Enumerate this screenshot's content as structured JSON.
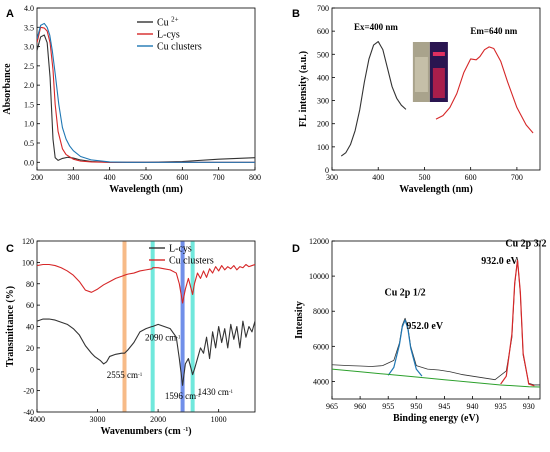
{
  "chart_data": [
    {
      "panel": "A",
      "type": "line",
      "title": "",
      "xlabel": "Wavelength (nm)",
      "ylabel": "Absorbance",
      "xlim": [
        200,
        800
      ],
      "ylim": [
        -0.2,
        4.0
      ],
      "xticks": [
        200,
        300,
        400,
        500,
        600,
        700,
        800
      ],
      "yticks": [
        0.0,
        0.5,
        1.0,
        1.5,
        2.0,
        2.5,
        3.0,
        3.5,
        4.0
      ],
      "legend": "top-right",
      "series": [
        {
          "name": "Cu 2+",
          "color": "#333333",
          "x": [
            200,
            210,
            220,
            228,
            236,
            244,
            250,
            258,
            270,
            285,
            300,
            320,
            350,
            400,
            500,
            600,
            700,
            800
          ],
          "y": [
            2.9,
            3.25,
            3.3,
            3.1,
            2.2,
            0.6,
            0.12,
            0.05,
            0.1,
            0.13,
            0.11,
            0.06,
            0.02,
            0.0,
            0.0,
            0.02,
            0.08,
            0.12
          ]
        },
        {
          "name": "L-cys",
          "color": "#d62728",
          "x": [
            200,
            210,
            220,
            228,
            236,
            244,
            250,
            258,
            270,
            280,
            290,
            300,
            320,
            350,
            400,
            500,
            600,
            700,
            800
          ],
          "y": [
            3.1,
            3.5,
            3.48,
            3.4,
            3.1,
            2.4,
            1.5,
            0.8,
            0.35,
            0.2,
            0.14,
            0.08,
            0.03,
            0.01,
            0.0,
            0.0,
            0.0,
            0.0,
            0.0
          ]
        },
        {
          "name": "Cu clusters",
          "color": "#1f77b4",
          "x": [
            200,
            210,
            220,
            228,
            235,
            242,
            250,
            260,
            270,
            280,
            290,
            300,
            320,
            350,
            400,
            450,
            500,
            600,
            700,
            800
          ],
          "y": [
            3.2,
            3.55,
            3.6,
            3.5,
            3.3,
            2.9,
            2.3,
            1.5,
            0.9,
            0.6,
            0.42,
            0.3,
            0.15,
            0.06,
            0.01,
            0.0,
            0.0,
            0.0,
            0.0,
            0.0
          ]
        }
      ]
    },
    {
      "panel": "B",
      "type": "line",
      "title": "",
      "xlabel": "Wavelength (nm)",
      "ylabel": "FL intensity (a.u.)",
      "xlim": [
        300,
        750
      ],
      "ylim": [
        0,
        700
      ],
      "xticks": [
        300,
        400,
        500,
        600,
        700
      ],
      "yticks": [
        0,
        100,
        200,
        300,
        400,
        500,
        600,
        700
      ],
      "annotations": [
        "Ex=400 nm",
        "Em=640 nm"
      ],
      "inset": "photograph of vials under daylight and UV light",
      "series": [
        {
          "name": "",
          "color": "#333333",
          "x": [
            320,
            330,
            340,
            350,
            360,
            370,
            380,
            390,
            400,
            410,
            420,
            430,
            440,
            450,
            460
          ],
          "y": [
            60,
            75,
            110,
            170,
            260,
            380,
            480,
            540,
            555,
            520,
            440,
            360,
            310,
            280,
            262
          ]
        },
        {
          "name": "",
          "color": "#d62728",
          "x": [
            525,
            540,
            555,
            570,
            585,
            600,
            612,
            620,
            630,
            640,
            650,
            665,
            680,
            700,
            720,
            735
          ],
          "y": [
            220,
            235,
            270,
            330,
            420,
            480,
            476,
            490,
            520,
            532,
            525,
            470,
            380,
            270,
            195,
            160
          ]
        }
      ]
    },
    {
      "panel": "C",
      "type": "line",
      "title": "",
      "xlabel": "Wavenumbers (cm -1)",
      "ylabel": "Transmittance (%)",
      "xlim": [
        4000,
        400
      ],
      "ylim": [
        -40,
        120
      ],
      "xticks": [
        4000,
        3000,
        2000,
        1000
      ],
      "yticks": [
        -40,
        -20,
        0,
        20,
        40,
        60,
        80,
        100,
        120
      ],
      "legend": "top-right",
      "highlights": [
        {
          "center": 2555,
          "color": "#f4a460"
        },
        {
          "center": 2090,
          "color": "#40e0d0"
        },
        {
          "center": 1596,
          "color": "#4169e1"
        },
        {
          "center": 1430,
          "color": "#40e0d0"
        }
      ],
      "annotations": [
        {
          "text": "2555 cm",
          "sup": "-1"
        },
        {
          "text": "2090 cm",
          "sup": "-1"
        },
        {
          "text": "1596 cm",
          "sup": "-1"
        },
        {
          "text": "1430 cm",
          "sup": "-1"
        }
      ],
      "series": [
        {
          "name": "L-cys",
          "color": "#333333",
          "x": [
            4000,
            3900,
            3800,
            3700,
            3600,
            3500,
            3400,
            3300,
            3200,
            3100,
            3050,
            3000,
            2950,
            2900,
            2850,
            2800,
            2700,
            2600,
            2555,
            2500,
            2400,
            2300,
            2200,
            2100,
            2090,
            2000,
            1900,
            1800,
            1700,
            1650,
            1596,
            1550,
            1500,
            1430,
            1400,
            1350,
            1300,
            1250,
            1200,
            1150,
            1100,
            1050,
            1000,
            950,
            900,
            850,
            800,
            750,
            700,
            650,
            600,
            550,
            500,
            450,
            400
          ],
          "y": [
            45,
            47,
            47,
            46,
            44,
            42,
            38,
            32,
            22,
            15,
            12,
            10,
            8,
            5,
            7,
            12,
            14,
            15,
            15,
            18,
            25,
            35,
            38,
            40,
            40,
            42,
            40,
            38,
            30,
            10,
            -15,
            5,
            10,
            -5,
            0,
            10,
            20,
            15,
            30,
            10,
            35,
            20,
            40,
            25,
            38,
            20,
            42,
            28,
            40,
            20,
            45,
            30,
            40,
            35,
            45
          ]
        },
        {
          "name": "Cu clusters",
          "color": "#d62728",
          "x": [
            4000,
            3900,
            3800,
            3700,
            3600,
            3500,
            3400,
            3300,
            3200,
            3100,
            3000,
            2900,
            2800,
            2700,
            2600,
            2555,
            2500,
            2400,
            2300,
            2200,
            2100,
            2090,
            2000,
            1900,
            1800,
            1700,
            1650,
            1596,
            1550,
            1500,
            1430,
            1400,
            1350,
            1300,
            1250,
            1200,
            1150,
            1100,
            1050,
            1000,
            950,
            900,
            850,
            800,
            750,
            700,
            650,
            600,
            550,
            500,
            450,
            400
          ],
          "y": [
            97,
            98,
            98,
            97,
            95,
            92,
            88,
            82,
            74,
            72,
            75,
            79,
            82,
            85,
            87,
            88,
            89,
            90,
            92,
            93,
            94,
            95,
            95,
            94,
            93,
            90,
            80,
            62,
            75,
            85,
            70,
            80,
            90,
            85,
            92,
            86,
            94,
            90,
            96,
            92,
            97,
            93,
            96,
            94,
            97,
            93,
            96,
            95,
            98,
            96,
            97,
            98
          ]
        }
      ]
    },
    {
      "panel": "D",
      "type": "line",
      "title": "",
      "xlabel": "Binding energy (eV)",
      "ylabel": "Intensity",
      "xlim": [
        965,
        928
      ],
      "ylim": [
        3000,
        12000
      ],
      "xticks": [
        965,
        960,
        955,
        950,
        945,
        940,
        935,
        930
      ],
      "yticks": [
        4000,
        6000,
        8000,
        10000,
        12000
      ],
      "annotations": [
        "Cu 2p 1/2",
        "952.0 eV",
        "Cu 2p 3/2",
        "932.0 eV"
      ],
      "series": [
        {
          "name": "",
          "color": "#333333",
          "x": [
            965,
            962,
            960,
            958,
            956,
            954,
            953,
            952.5,
            952,
            951.5,
            951,
            950,
            948,
            946,
            944,
            942,
            940,
            938,
            936,
            934,
            933,
            932.5,
            932,
            931.5,
            931,
            930,
            929,
            928
          ],
          "y": [
            4950,
            4900,
            4880,
            4850,
            4900,
            5200,
            6200,
            7200,
            7600,
            7100,
            6000,
            4900,
            4700,
            4650,
            4550,
            4400,
            4300,
            4200,
            4100,
            4600,
            6500,
            9500,
            11000,
            9000,
            5500,
            3900,
            3800,
            3800
          ]
        },
        {
          "name": "",
          "color": "#1f77b4",
          "x": [
            955,
            954,
            953,
            952.5,
            952,
            951.5,
            951,
            950,
            949
          ],
          "y": [
            4350,
            4800,
            6100,
            7100,
            7500,
            7000,
            5900,
            4700,
            4300
          ]
        },
        {
          "name": "",
          "color": "#d62728",
          "x": [
            935,
            934,
            933,
            932.5,
            932,
            931.5,
            931,
            930,
            929
          ],
          "y": [
            3850,
            4300,
            6700,
            9600,
            10900,
            9100,
            5600,
            3850,
            3750
          ]
        },
        {
          "name": "",
          "color": "#2ca02c",
          "x": [
            965,
            960,
            955,
            950,
            945,
            940,
            935,
            930,
            928
          ],
          "y": [
            4700,
            4550,
            4400,
            4250,
            4100,
            3950,
            3800,
            3700,
            3680
          ]
        }
      ]
    }
  ]
}
